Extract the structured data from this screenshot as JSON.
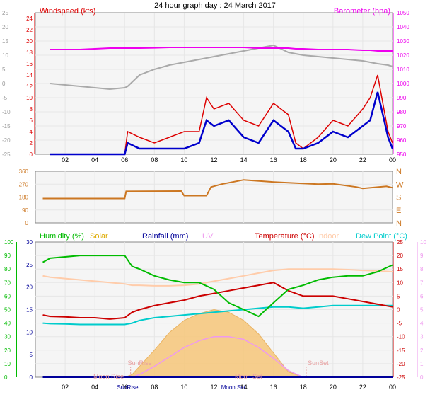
{
  "title": "24 hour graph day : 24 March 2017",
  "x_tick_labels": [
    "02",
    "04",
    "06",
    "08",
    "10",
    "12",
    "14",
    "16",
    "18",
    "20",
    "22",
    "00"
  ],
  "colors": {
    "windspeed": "#dd0000",
    "wind_avg": "#0000cc",
    "barometer": "#ee00ee",
    "temp_faint": "#aaaaaa",
    "direction": "#cc7722",
    "humidity": "#00bb00",
    "solar": "#ddaa00",
    "rainfall": "#000099",
    "uv": "#ee99ee",
    "temperature": "#cc0000",
    "indoor": "#ffccaa",
    "dewpoint": "#00cccc",
    "grid": "#e6e6e6",
    "plot_bg": "#f5f5f5"
  },
  "panels": {
    "wind": {
      "left_label": "Windspeed (kts)",
      "right_label": "Barometer (hpa)",
      "left_ticks": [
        "24",
        "22",
        "20",
        "18",
        "16",
        "14",
        "12",
        "10",
        "8",
        "6",
        "4",
        "2",
        "0"
      ],
      "outer_ticks": [
        "25",
        "20",
        "15",
        "10",
        "5",
        "0",
        "-5",
        "-10",
        "-15",
        "-20",
        "-25"
      ],
      "right_ticks": [
        "1050",
        "1040",
        "1030",
        "1020",
        "1010",
        "1000",
        "990",
        "980",
        "970",
        "960",
        "950"
      ]
    },
    "direction": {
      "left_ticks": [
        "360",
        "270",
        "180",
        "90",
        "0"
      ],
      "right_ticks": [
        "N",
        "W",
        "S",
        "E",
        "N"
      ]
    },
    "lower": {
      "labels": {
        "humidity": "Humidity  (%)",
        "solar": "Solar",
        "rainfall": "Rainfall (mm)",
        "uv": "UV",
        "temperature": "Temperature (°C)",
        "indoor": "Indoor",
        "dewpoint": "Dew Point (°C)"
      },
      "humidity_ticks": [
        "100",
        "90",
        "80",
        "70",
        "60",
        "50",
        "40",
        "30",
        "20",
        "10",
        "0"
      ],
      "rain_ticks": [
        "30",
        "25",
        "20",
        "15",
        "10",
        "5",
        "0"
      ],
      "temp_ticks": [
        "25",
        "20",
        "15",
        "10",
        "5",
        "0",
        "-5",
        "-10",
        "-15",
        "-20",
        "-25"
      ],
      "uv_ticks": [
        "10",
        "9",
        "8",
        "7",
        "6",
        "5",
        "4",
        "3",
        "2",
        "1",
        "0"
      ],
      "annotations": [
        "SunRise",
        "SunSet",
        "Moon Rise",
        "Moon Set",
        "SunRise",
        "Moon Set"
      ]
    }
  },
  "chart_data": [
    {
      "type": "line",
      "title": "",
      "xlabel": "",
      "ylabel": "Windspeed (kts)",
      "ylim": [
        0,
        25
      ],
      "y2label": "Barometer (hpa)",
      "y2lim": [
        950,
        1050
      ],
      "x": [
        1,
        2,
        3,
        4,
        5,
        6,
        6.2,
        7,
        8,
        9,
        10,
        11,
        11.5,
        12,
        13,
        14,
        15,
        16,
        17,
        17.5,
        18,
        19,
        20,
        21,
        22,
        22.5,
        23,
        23.7,
        24
      ],
      "series": [
        {
          "name": "Windspeed (kts)",
          "axis": "left",
          "values": [
            0,
            0,
            0,
            0,
            0,
            0,
            4,
            3,
            2,
            3,
            4,
            4,
            10,
            8,
            9,
            6,
            5,
            9,
            7,
            2,
            1,
            3,
            6,
            5,
            8,
            10,
            14,
            4,
            2
          ]
        },
        {
          "name": "wind average",
          "axis": "left",
          "values": [
            0,
            0,
            0,
            0,
            0,
            0,
            2,
            1,
            1,
            1,
            1,
            2,
            6,
            5,
            6,
            3,
            2,
            6,
            4,
            1,
            1,
            2,
            4,
            3,
            5,
            6,
            11,
            3,
            1
          ]
        },
        {
          "name": "Barometer (hpa)",
          "axis": "right",
          "values": [
            1024,
            1024,
            1024,
            1024.5,
            1025,
            1025,
            1025,
            1025,
            1025.2,
            1025.5,
            1025.5,
            1025.5,
            1025.5,
            1025.5,
            1025.5,
            1025.5,
            1025,
            1025,
            1025,
            1024.5,
            1024.5,
            1024,
            1024,
            1024,
            1023.5,
            1023.5,
            1023,
            1023,
            1023
          ]
        },
        {
          "name": "temperature (faint)",
          "axis": "outer",
          "values": [
            0,
            -0.5,
            -1,
            -1.5,
            -2,
            -1.5,
            -1,
            3,
            5,
            6.5,
            7.5,
            8.5,
            9,
            9.5,
            10.5,
            11.5,
            12.5,
            13.5,
            11,
            10.5,
            10,
            9.5,
            9,
            8.5,
            8,
            7.5,
            7,
            6.5,
            6
          ]
        }
      ]
    },
    {
      "type": "line",
      "title": "",
      "xlabel": "",
      "ylabel": "",
      "ylim": [
        0,
        360
      ],
      "x": [
        0.5,
        6,
        6.1,
        9.8,
        10,
        11.5,
        11.8,
        12.5,
        14,
        16,
        19,
        20,
        21.6,
        22,
        23.6,
        24
      ],
      "series": [
        {
          "name": "wind direction",
          "values": [
            170,
            170,
            220,
            222,
            190,
            190,
            250,
            270,
            300,
            285,
            270,
            272,
            250,
            240,
            255,
            245
          ]
        }
      ]
    },
    {
      "type": "line",
      "title": "",
      "xlabel": "",
      "ylabel": "",
      "ylim": [
        0,
        100
      ],
      "y2lim": [
        -25,
        25
      ],
      "x": [
        0.5,
        1,
        2,
        3,
        4,
        5,
        6,
        6.5,
        7,
        8,
        9,
        10,
        11,
        12,
        13,
        14,
        15,
        16,
        17,
        18,
        19,
        20,
        21,
        22,
        23,
        24
      ],
      "series": [
        {
          "name": "Humidity  (%)",
          "values": [
            85,
            88,
            89,
            90,
            90,
            90,
            90,
            82,
            80,
            75,
            72,
            70,
            70,
            65,
            55,
            50,
            45,
            55,
            65,
            68,
            72,
            74,
            75,
            75,
            78,
            83
          ]
        },
        {
          "name": "Temperature (°C)",
          "axis": "right",
          "values": [
            -2,
            -2.5,
            -2.7,
            -3,
            -3,
            -3.5,
            -3,
            -1,
            0,
            1.5,
            2.5,
            3.5,
            5,
            6,
            7,
            8,
            9,
            10,
            7,
            5,
            5,
            5,
            4,
            3,
            2,
            1
          ]
        },
        {
          "name": "Dew Point (°C)",
          "axis": "right",
          "values": [
            -5,
            -5.2,
            -5.3,
            -5.5,
            -5.5,
            -5.5,
            -5.5,
            -5,
            -4,
            -3,
            -2.5,
            -2,
            -1.5,
            -1,
            -0.5,
            0,
            0.5,
            1,
            1,
            0.5,
            1,
            1.5,
            1.5,
            1.5,
            1.5,
            1.5
          ]
        },
        {
          "name": "Indoor",
          "axis": "right",
          "values": [
            12.5,
            12,
            11.5,
            11,
            10.5,
            10,
            9.5,
            9,
            9,
            8.8,
            8.8,
            9,
            9.5,
            10.5,
            11.5,
            12.5,
            13.5,
            14.5,
            15,
            15,
            15,
            15,
            14.8,
            14.5,
            14.3,
            14
          ]
        },
        {
          "name": "UV",
          "axis": "uv",
          "values": [
            0,
            0,
            0,
            0,
            0,
            0,
            0,
            0,
            0.2,
            0.8,
            1.5,
            2.2,
            2.7,
            3.0,
            3.0,
            2.8,
            2.2,
            1.4,
            0.5,
            0,
            0,
            0,
            0,
            0,
            0,
            0
          ]
        },
        {
          "name": "Solar",
          "values": [
            0,
            0,
            0,
            0,
            0,
            0,
            0,
            2,
            8,
            20,
            33,
            42,
            47,
            50,
            48,
            42,
            32,
            18,
            4,
            0,
            0,
            0,
            0,
            0,
            0,
            0
          ]
        },
        {
          "name": "Rainfall (mm)",
          "values": [
            0,
            0,
            0,
            0,
            0,
            0,
            0,
            0,
            0,
            0,
            0,
            0,
            0,
            0,
            0,
            0,
            0,
            0,
            0,
            0,
            0,
            0,
            0,
            0,
            0,
            0
          ]
        }
      ]
    }
  ]
}
